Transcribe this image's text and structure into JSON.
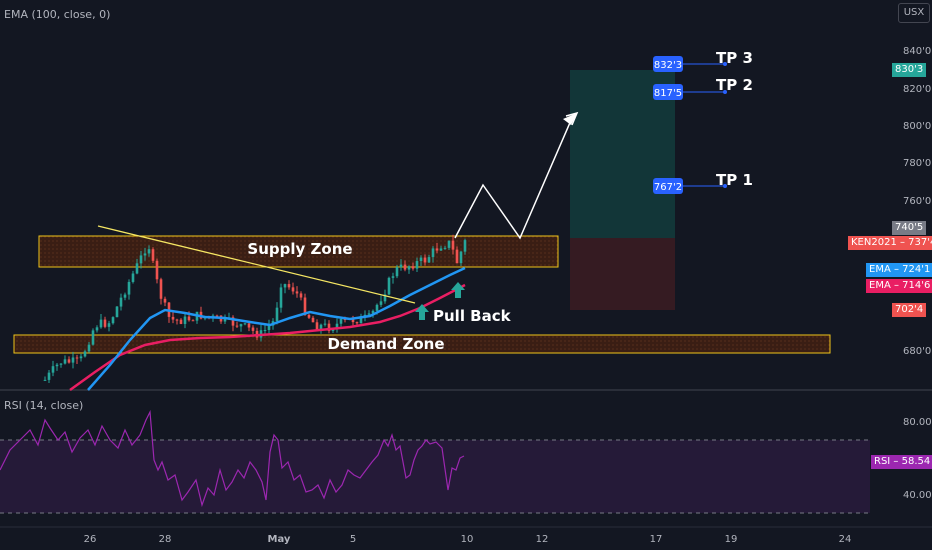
{
  "indicators": {
    "ema_label": "EMA (100, close, 0)",
    "rsi_label": "RSI (14, close)"
  },
  "axis": {
    "currency": "USX",
    "price_ticks": [
      "840'0",
      "820'0",
      "800'0",
      "780'0",
      "760'0",
      "680'0"
    ],
    "rsi_ticks": [
      "80.00",
      "40.00"
    ],
    "date_ticks": [
      "26",
      "28",
      "May",
      "5",
      "10",
      "12",
      "17",
      "19",
      "24"
    ]
  },
  "price_tags": {
    "tp3": "830'3",
    "top_grey": "740'5",
    "symbol": "KEN2021 – 737'4",
    "ema_blue": "EMA – 724'1",
    "ema_red": "EMA – 714'6",
    "stop": "702'4",
    "rsi": "RSI – 58.54"
  },
  "annotations": {
    "supply_zone": "Supply Zone",
    "demand_zone": "Demand Zone",
    "pull_back": "Pull Back",
    "tp3_label": "TP 3",
    "tp2_label": "TP 2",
    "tp1_label": "TP 1",
    "tp3_box": "832'3",
    "tp2_box": "817'5",
    "tp1_box": "767'2"
  },
  "colors": {
    "background": "#131722",
    "up_candle": "#26a69a",
    "down_candle": "#ef5350",
    "ema_fast": "#2196f3",
    "ema_slow": "#e91e63",
    "rsi_line": "#9c27b0",
    "zone_border": "#f0c419",
    "trendline": "#f5e663",
    "tp_box": "#2962ff",
    "target_fill": "#133c3c",
    "stop_fill": "#3a1c22"
  },
  "chart_data": {
    "type": "candlestick",
    "ema_fast_last": 724.1,
    "ema_slow_last": 714.6,
    "last_price": 737.4,
    "rsi_last": 58.54,
    "levels": {
      "tp3": 832.3,
      "tp2": 817.5,
      "tp1": 767.2,
      "stop": 702.4,
      "target_top": 830.3
    },
    "supply_zone": [
      731,
      746
    ],
    "demand_zone": [
      680,
      690
    ],
    "ylim": [
      663,
      852
    ],
    "rsi_ylim": [
      20,
      100
    ],
    "rsi_bands": [
      70,
      30
    ]
  }
}
